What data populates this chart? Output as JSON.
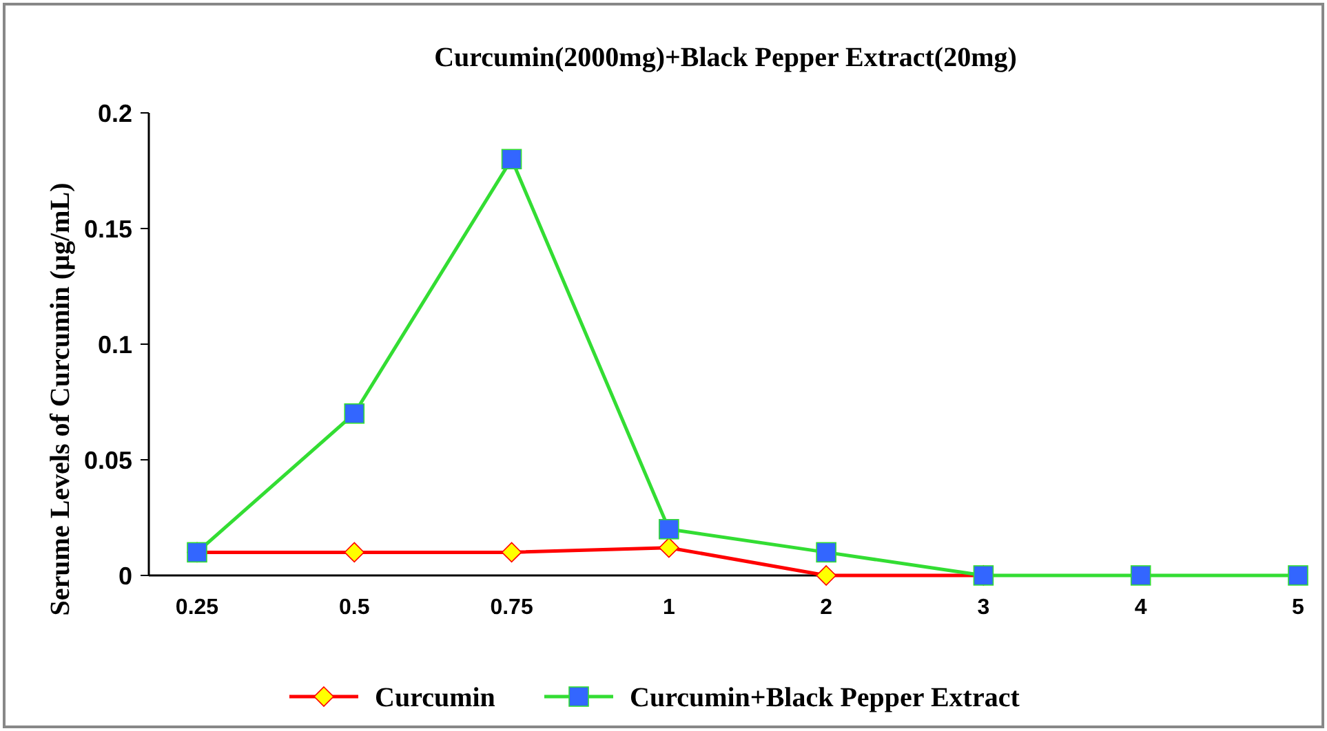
{
  "chart_data": {
    "type": "line",
    "title": "Curcumin(2000mg)+Black Pepper Extract(20mg)",
    "ylabel": "Serume Levels of Curcumin (µg/mL)",
    "categories": [
      "0.25",
      "0.5",
      "0.75",
      "1",
      "2",
      "3",
      "4",
      "5"
    ],
    "ylim": [
      0,
      0.2
    ],
    "yticks": [
      0,
      0.05,
      0.1,
      0.15,
      0.2
    ],
    "grid": false,
    "legend": "bottom",
    "series": [
      {
        "name": "Curcumin",
        "color": "#ff0000",
        "marker": "diamond",
        "values": [
          0.01,
          0.01,
          0.01,
          0.012,
          0,
          0,
          null,
          null
        ]
      },
      {
        "name": "Curcumin+Black Pepper Extract",
        "color": "#33dd33",
        "marker": "square",
        "values": [
          0.01,
          0.07,
          0.18,
          0.02,
          0.01,
          0,
          0,
          0
        ]
      }
    ]
  }
}
